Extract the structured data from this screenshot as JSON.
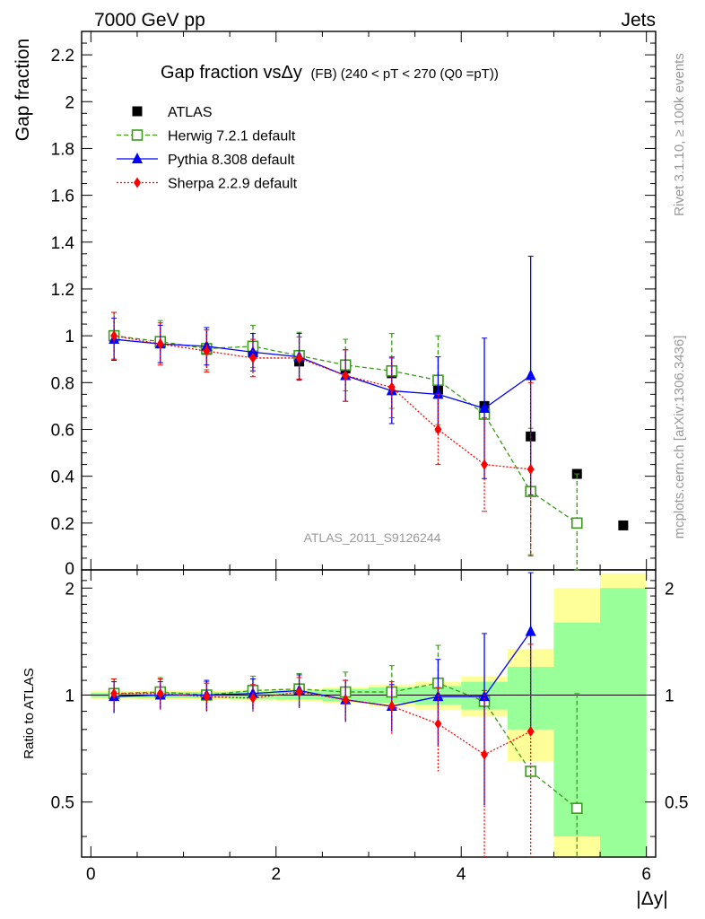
{
  "header": {
    "left": "7000 GeV pp",
    "right": "Jets"
  },
  "side_text": {
    "rivet": "Rivet 3.1.10, ≥ 100k events",
    "mcplots": "mcplots.cern.ch [arXiv:1306.3436]"
  },
  "chart_data": {
    "type": "scatter",
    "title": "Gap fraction vsΔy",
    "subtitle": "(FB) (240 < pT < 270 (Q0 =pT))",
    "xlabel": "|Δy|",
    "ylabel": "Gap fraction",
    "ratio_ylabel": "Ratio to ATLAS",
    "watermark": "ATLAS_2011_S9126244",
    "xlim": [
      -0.1,
      6.1
    ],
    "ylim": [
      0,
      2.3
    ],
    "ratio_ylim": [
      0.35,
      2.25
    ],
    "x_ticks": [
      0,
      2,
      4,
      6
    ],
    "y_ticks": [
      0.2,
      0.4,
      0.6,
      0.8,
      1,
      1.2,
      1.4,
      1.6,
      1.8,
      2,
      2.2
    ],
    "y_tick_labels": [
      "0.2",
      "0.4",
      "0.6",
      "0.8",
      "1",
      "1.2",
      "1.4",
      "1.6",
      "1.8",
      "2",
      "2.2"
    ],
    "ratio_ticks": [
      0.5,
      1,
      2
    ],
    "ratio_tick_labels": [
      "0.5",
      "1",
      "2"
    ],
    "legend_position": "top-left",
    "x": [
      0.25,
      0.75,
      1.25,
      1.75,
      2.25,
      2.75,
      3.25,
      3.75,
      4.25,
      4.75,
      5.25,
      5.75
    ],
    "bin_edges": [
      0,
      0.5,
      1,
      1.5,
      2,
      2.5,
      3,
      3.5,
      4,
      4.5,
      5,
      5.5,
      6
    ],
    "series": [
      {
        "name": "ATLAS",
        "color": "#000000",
        "marker": "square",
        "values": [
          1.0,
          0.97,
          0.94,
          0.93,
          0.89,
          0.86,
          0.84,
          0.77,
          0.7,
          0.57,
          0.41,
          0.19
        ],
        "band_yellow": [
          0.025,
          0.03,
          0.03,
          0.035,
          0.04,
          0.05,
          0.07,
          0.09,
          0.13,
          0.35,
          1.0,
          1.2
        ],
        "band_green": [
          0.015,
          0.02,
          0.02,
          0.025,
          0.03,
          0.04,
          0.05,
          0.06,
          0.09,
          0.2,
          0.6,
          1.0
        ]
      },
      {
        "name": "Herwig 7.2.1 default",
        "color": "#3a9a1a",
        "marker": "open-square",
        "values": [
          1.0,
          0.975,
          0.945,
          0.955,
          0.915,
          0.875,
          0.85,
          0.81,
          0.665,
          0.335,
          0.2
        ],
        "errors": [
          0.1,
          0.09,
          0.09,
          0.09,
          0.1,
          0.11,
          0.16,
          0.19,
          0.0,
          0.27,
          0.21
        ],
        "ratio": [
          1.01,
          1.02,
          1.0,
          1.03,
          1.04,
          1.02,
          1.02,
          1.08,
          0.96,
          0.61,
          0.48
        ],
        "ratio_errors": [
          0.1,
          0.1,
          0.09,
          0.1,
          0.11,
          0.14,
          0.19,
          0.3,
          0.0,
          0.0,
          0.53
        ]
      },
      {
        "name": "Pythia 8.308 default",
        "color": "#0000ff",
        "marker": "triangle",
        "values": [
          0.985,
          0.965,
          0.955,
          0.93,
          0.91,
          0.83,
          0.765,
          0.75,
          0.69,
          0.83
        ],
        "errors": [
          0.09,
          0.08,
          0.08,
          0.08,
          0.1,
          0.11,
          0.14,
          0.16,
          0.3,
          0.51
        ],
        "ratio": [
          0.99,
          1.0,
          1.0,
          1.01,
          1.03,
          0.97,
          0.93,
          0.99,
          0.99,
          1.51
        ],
        "ratio_errors": [
          0.1,
          0.09,
          0.1,
          0.1,
          0.11,
          0.13,
          0.14,
          0.27,
          0.5,
          0.7
        ]
      },
      {
        "name": "Sherpa 2.2.9 default",
        "color": "#ff0000",
        "marker": "diamond",
        "values": [
          1.0,
          0.965,
          0.935,
          0.905,
          0.905,
          0.83,
          0.78,
          0.6,
          0.45,
          0.43
        ],
        "errors": [
          0.1,
          0.09,
          0.09,
          0.08,
          0.09,
          0.11,
          0.13,
          0.15,
          0.2,
          0.37
        ],
        "ratio": [
          1.01,
          1.01,
          0.99,
          0.98,
          1.02,
          0.97,
          0.93,
          0.83,
          0.68,
          0.79
        ],
        "ratio_errors": [
          0.1,
          0.1,
          0.09,
          0.09,
          0.1,
          0.13,
          0.16,
          0.22,
          0.35,
          0.6
        ]
      }
    ]
  }
}
